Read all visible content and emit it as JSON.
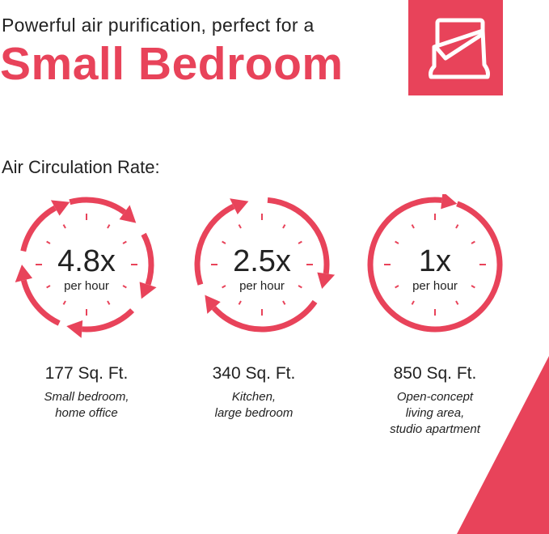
{
  "header": {
    "subtitle": "Powerful air purification, perfect for a",
    "title": "Small Bedroom",
    "icon": "bed-icon"
  },
  "section_label": "Air Circulation Rate:",
  "accent_color": "#e8435a",
  "rooms": [
    {
      "rate": "4.8x",
      "unit": "per hour",
      "area": "177 Sq. Ft.",
      "desc": [
        "Small bedroom,",
        "home office"
      ]
    },
    {
      "rate": "2.5x",
      "unit": "per hour",
      "area": "340 Sq. Ft.",
      "desc": [
        "Kitchen,",
        "large bedroom"
      ]
    },
    {
      "rate": "1x",
      "unit": "per hour",
      "area": "850 Sq. Ft.",
      "desc": [
        "Open-concept",
        "living area,",
        "studio apartment"
      ]
    }
  ]
}
